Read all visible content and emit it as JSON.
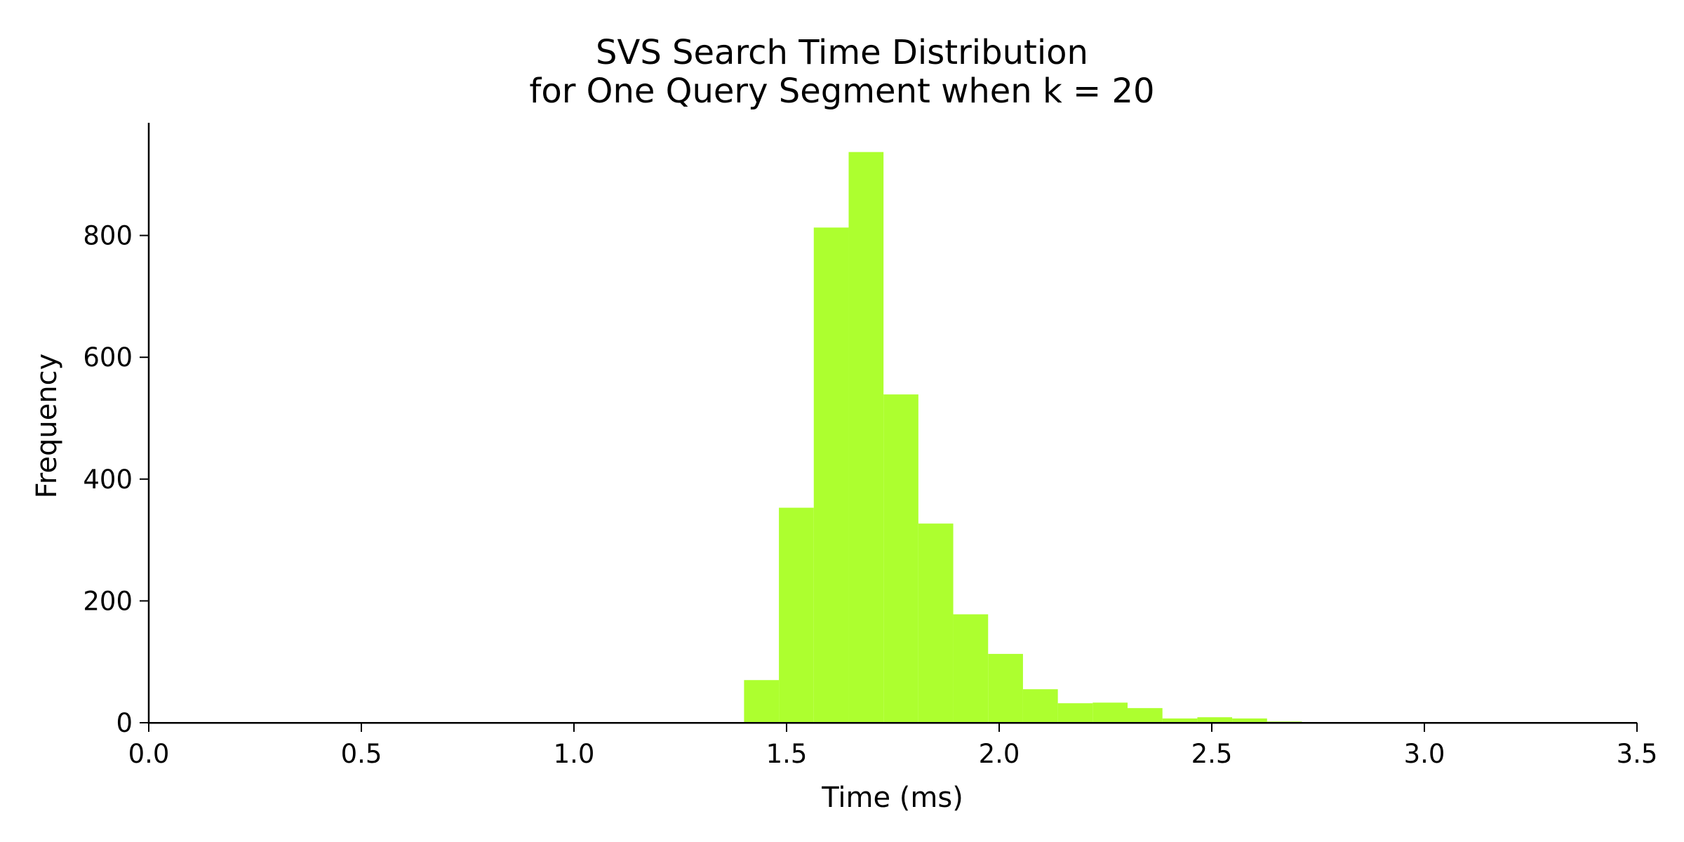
{
  "chart_data": {
    "type": "bar",
    "title": "SVS Search Time Distribution\nfor One Query Segment when k = 20",
    "title_lines": [
      "SVS Search Time Distribution",
      "for One Query Segment when k = 20"
    ],
    "xlabel": "Time (ms)",
    "ylabel": "Frequency",
    "xlim": [
      0.0,
      3.5
    ],
    "ylim": [
      0,
      985
    ],
    "x_ticks": [
      "0.0",
      "0.5",
      "1.0",
      "1.5",
      "2.0",
      "2.5",
      "3.0",
      "3.5"
    ],
    "y_ticks": [
      "0",
      "200",
      "400",
      "600",
      "800"
    ],
    "bar_color": "#adff2f",
    "grid": false,
    "legend": "none",
    "bins": [
      {
        "start": 1.4,
        "end": 1.482,
        "count": 70
      },
      {
        "start": 1.482,
        "end": 1.564,
        "count": 353
      },
      {
        "start": 1.564,
        "end": 1.646,
        "count": 813
      },
      {
        "start": 1.646,
        "end": 1.728,
        "count": 937
      },
      {
        "start": 1.728,
        "end": 1.81,
        "count": 539
      },
      {
        "start": 1.81,
        "end": 1.892,
        "count": 327
      },
      {
        "start": 1.892,
        "end": 1.974,
        "count": 178
      },
      {
        "start": 1.974,
        "end": 2.056,
        "count": 113
      },
      {
        "start": 2.056,
        "end": 2.138,
        "count": 55
      },
      {
        "start": 2.138,
        "end": 2.22,
        "count": 32
      },
      {
        "start": 2.22,
        "end": 2.302,
        "count": 33
      },
      {
        "start": 2.302,
        "end": 2.384,
        "count": 24
      },
      {
        "start": 2.384,
        "end": 2.466,
        "count": 7
      },
      {
        "start": 2.466,
        "end": 2.548,
        "count": 9
      },
      {
        "start": 2.548,
        "end": 2.63,
        "count": 7
      },
      {
        "start": 2.63,
        "end": 2.712,
        "count": 2
      },
      {
        "start": 2.712,
        "end": 2.794,
        "count": 1
      },
      {
        "start": 2.794,
        "end": 2.876,
        "count": 0
      },
      {
        "start": 2.876,
        "end": 2.958,
        "count": 0
      },
      {
        "start": 2.958,
        "end": 3.04,
        "count": 0
      },
      {
        "start": 3.04,
        "end": 3.122,
        "count": 1
      },
      {
        "start": 3.122,
        "end": 3.204,
        "count": 1
      },
      {
        "start": 3.204,
        "end": 3.286,
        "count": 0
      },
      {
        "start": 3.286,
        "end": 3.368,
        "count": 0
      },
      {
        "start": 3.368,
        "end": 3.45,
        "count": 0
      },
      {
        "start": 3.45,
        "end": 3.5,
        "count": 1
      }
    ]
  }
}
